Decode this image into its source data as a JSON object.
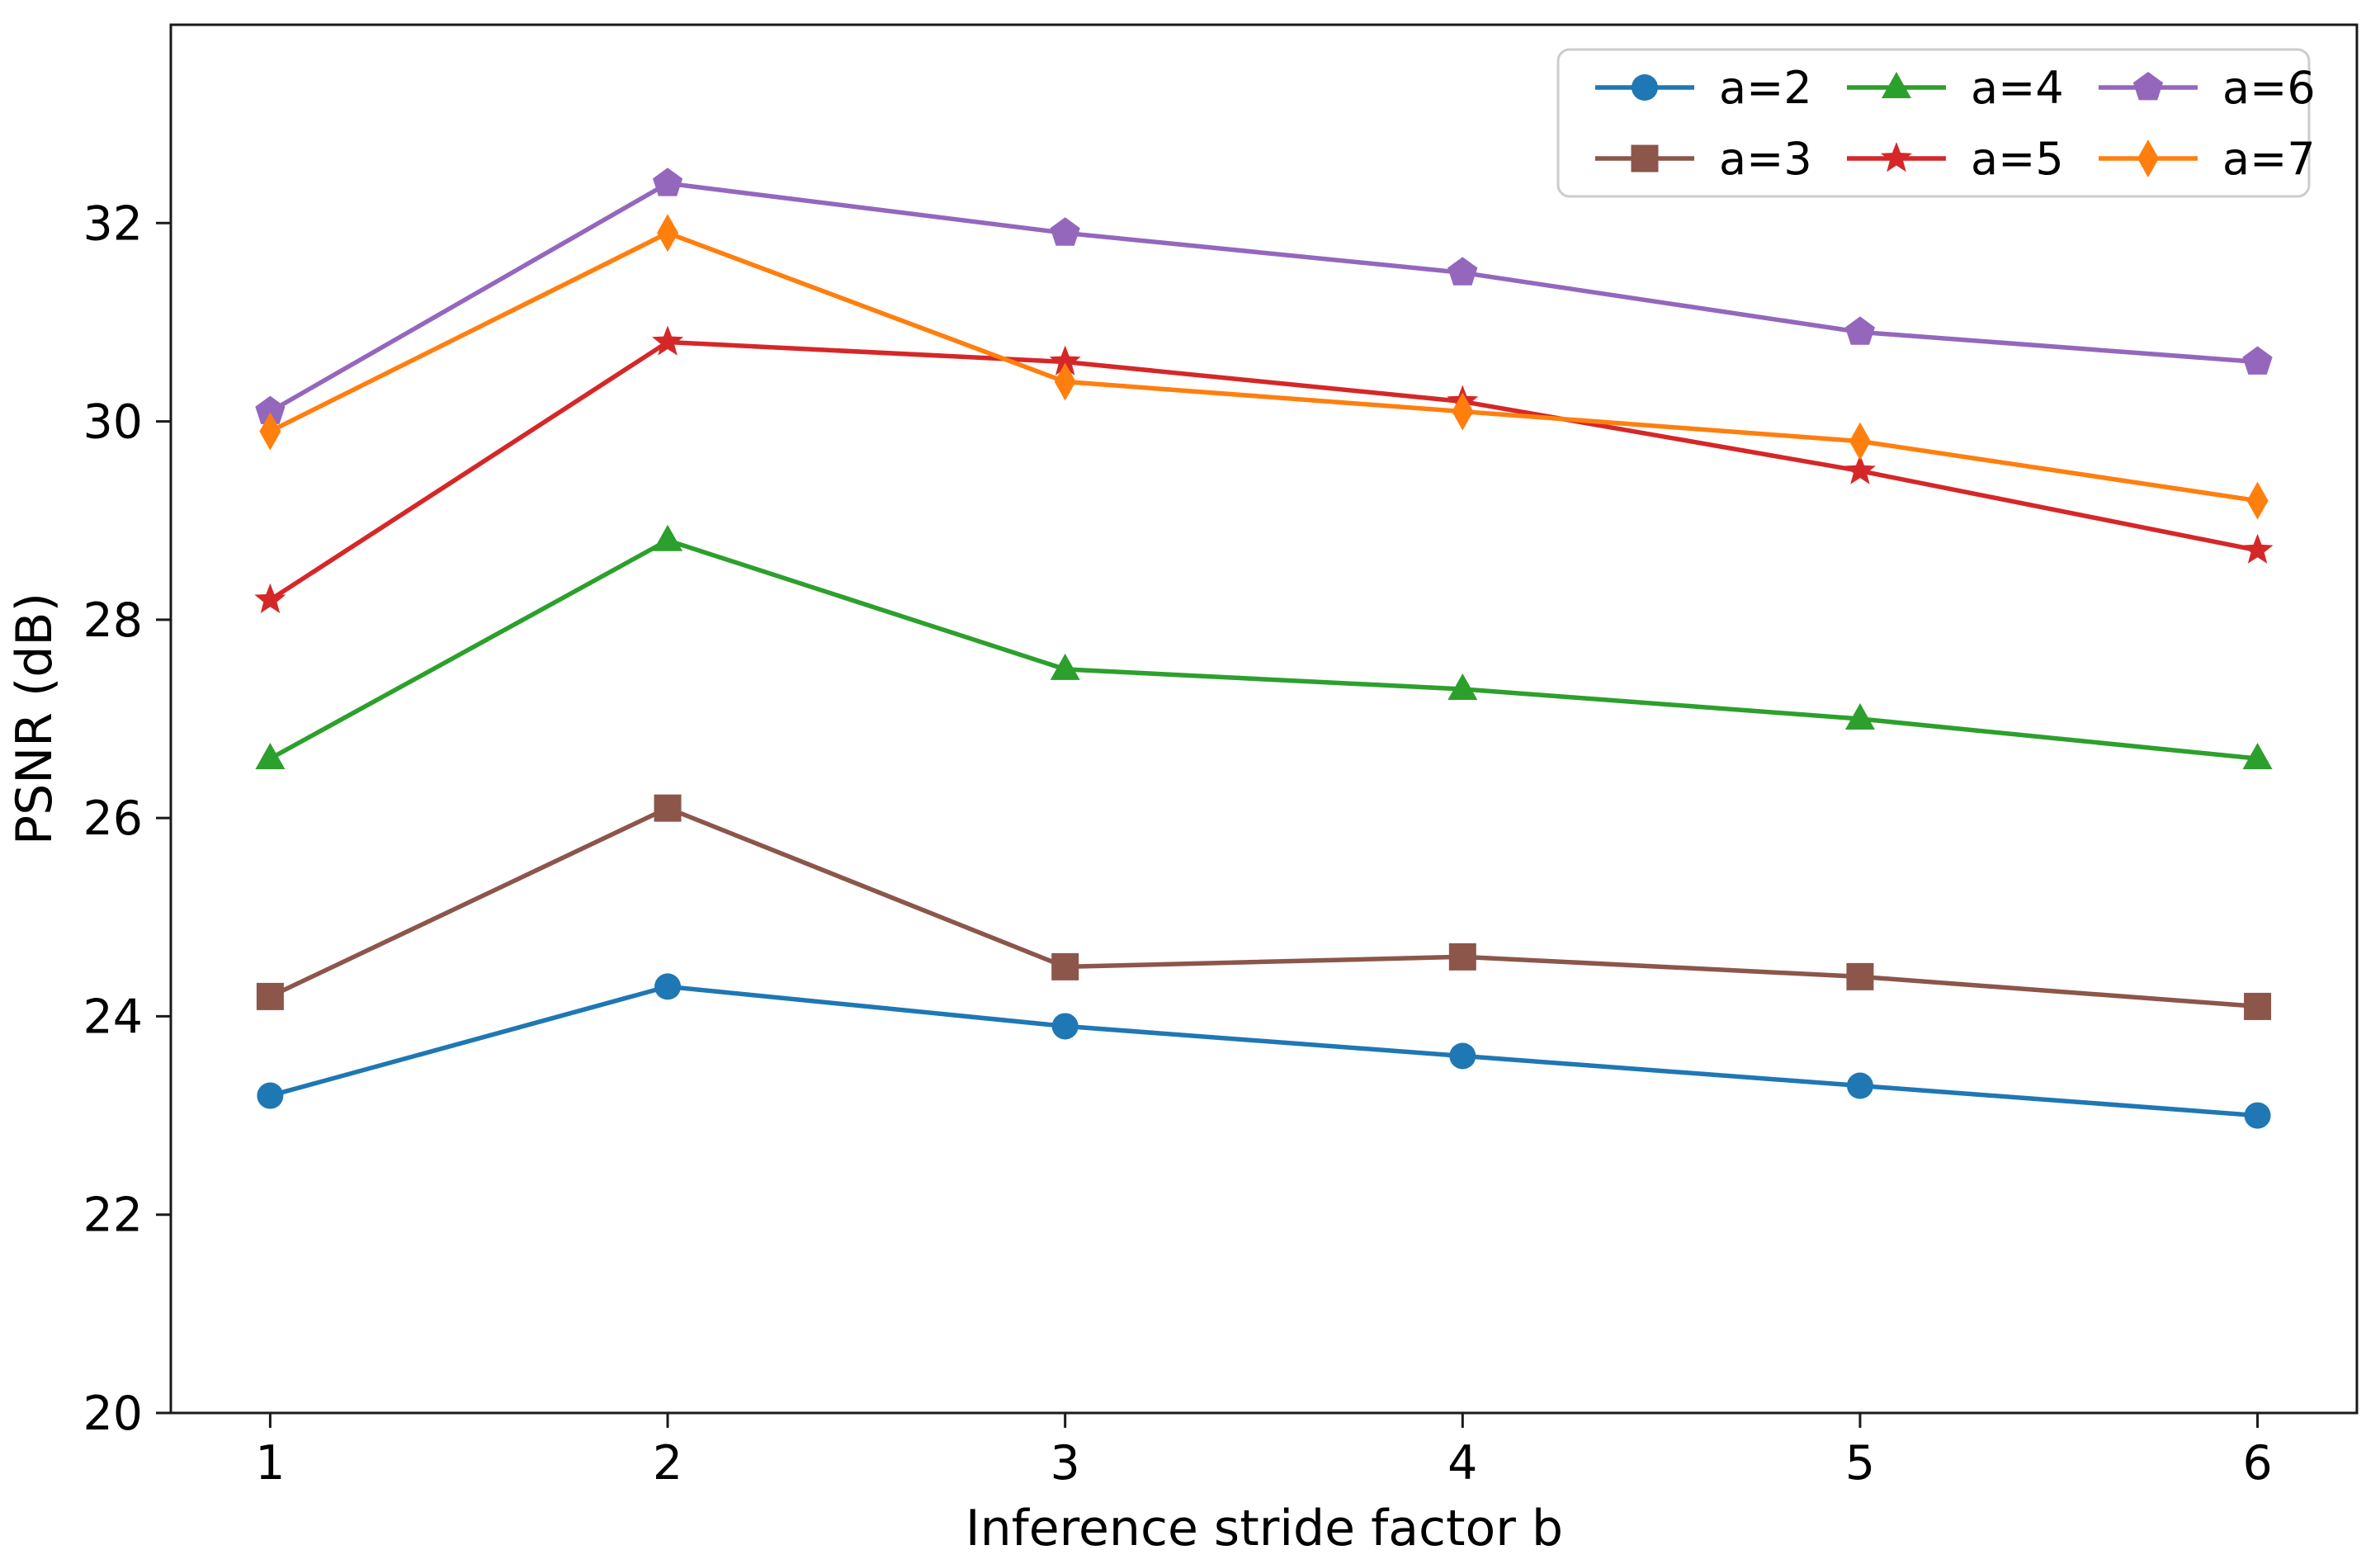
{
  "chart_data": {
    "type": "line",
    "x": [
      1,
      2,
      3,
      4,
      5,
      6
    ],
    "xlabel": "Inference stride factor b",
    "ylabel": "PSNR (dB)",
    "xlim": [
      0.75,
      6.25
    ],
    "ylim": [
      20,
      34
    ],
    "xticks": [
      1,
      2,
      3,
      4,
      5,
      6
    ],
    "yticks": [
      20,
      22,
      24,
      26,
      28,
      30,
      32
    ],
    "grid": false,
    "legend_position": "upper right",
    "legend_columns": 3,
    "legend_order_note": "column-major: col1 a=2,a=3; col2 a=4,a=5; col3 a=6,a=7",
    "series": [
      {
        "name": "a=2",
        "color": "#1f77b4",
        "marker": "circle",
        "values": [
          23.2,
          24.3,
          23.9,
          23.6,
          23.3,
          23.0
        ]
      },
      {
        "name": "a=3",
        "color": "#8c564b",
        "marker": "square",
        "values": [
          24.2,
          26.1,
          24.5,
          24.6,
          24.4,
          24.1
        ]
      },
      {
        "name": "a=4",
        "color": "#2ca02c",
        "marker": "triangle-up",
        "values": [
          26.6,
          28.8,
          27.5,
          27.3,
          27.0,
          26.6
        ]
      },
      {
        "name": "a=5",
        "color": "#d62728",
        "marker": "star",
        "values": [
          28.2,
          30.8,
          30.6,
          30.2,
          29.5,
          28.7
        ]
      },
      {
        "name": "a=6",
        "color": "#9467bd",
        "marker": "pentagon",
        "values": [
          30.1,
          32.4,
          31.9,
          31.5,
          30.9,
          30.6
        ]
      },
      {
        "name": "a=7",
        "color": "#ff7f0e",
        "marker": "thin-diamond",
        "values": [
          29.9,
          31.9,
          30.4,
          30.1,
          29.8,
          29.2
        ]
      }
    ],
    "axis_color": "#1a1a1a",
    "legend_border_color": "#cccccc",
    "background_color": "#ffffff"
  }
}
